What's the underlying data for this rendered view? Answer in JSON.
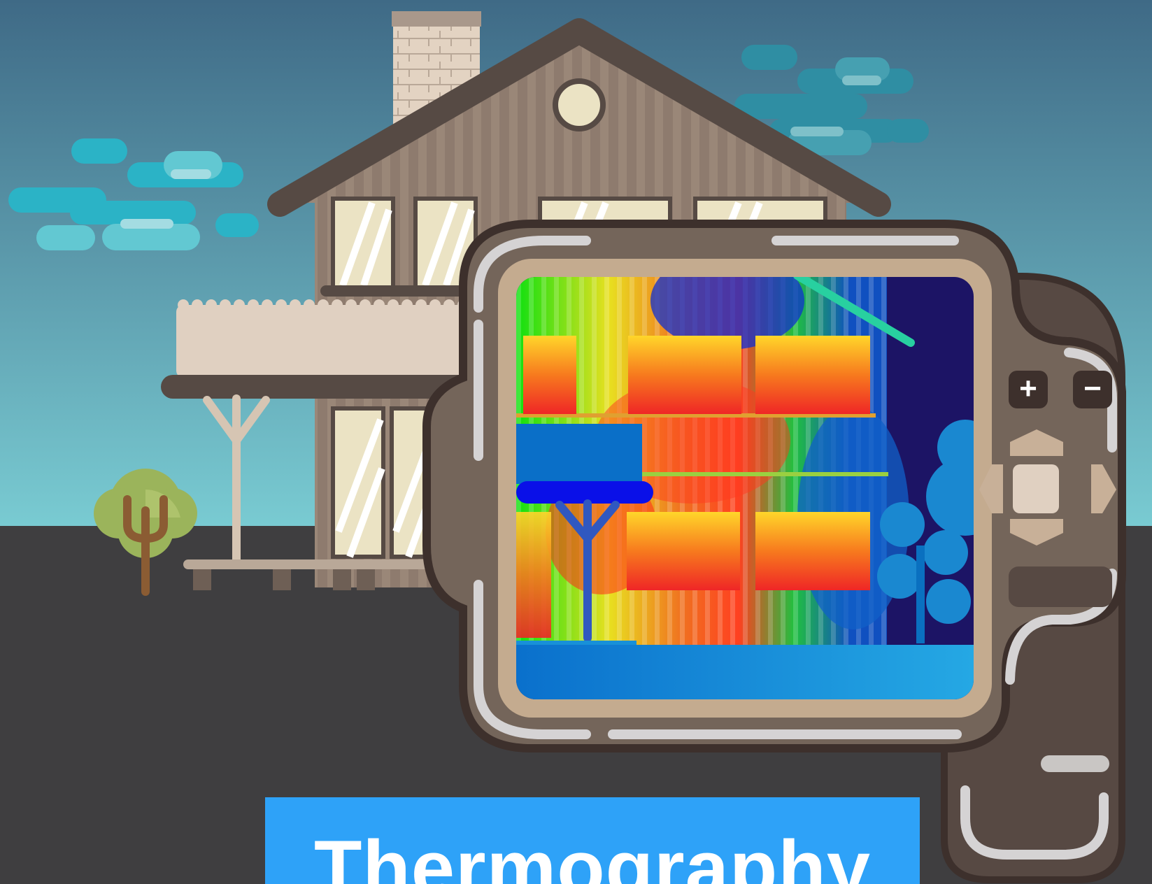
{
  "banner": {
    "title": "Thermography"
  },
  "camera": {
    "zoom_in_label": "+",
    "zoom_out_label": "−",
    "dpad_icon": "dpad-icon",
    "colors": {
      "body": "#74655a",
      "dark": "#3d302c",
      "bezel": "#c4ab8f",
      "accent": "#d5d3d4"
    }
  },
  "scene": {
    "colors": {
      "sky_top": "#3f6a86",
      "sky_bottom": "#79cbd2",
      "ground": "#3f3e40",
      "house": "#8e7b6e",
      "roof": "#564a44",
      "window": "#ebe3c4",
      "balcony": "#e0d0c1"
    }
  },
  "thermal": {
    "colors": {
      "hot": "#ef2626",
      "warm": "#ffd62a",
      "mild": "#10e810",
      "cold": "#0a6fc8",
      "background": "#1c1465"
    }
  }
}
